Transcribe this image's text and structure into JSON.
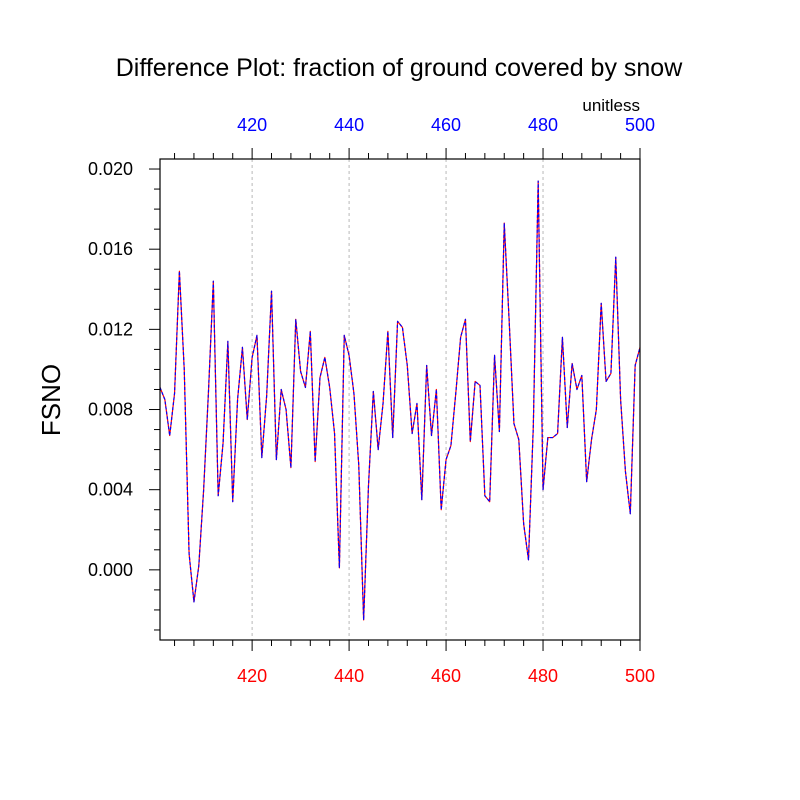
{
  "chart_data": {
    "type": "line",
    "title": "Difference Plot: fraction of ground covered by snow",
    "units_label": "unitless",
    "ylabel": "FSNO",
    "xlabel": "",
    "xlim": [
      401,
      500
    ],
    "ylim": [
      -0.0035,
      0.0205
    ],
    "x_ticks": [
      420,
      440,
      460,
      480,
      500
    ],
    "x_tick_labels": [
      "420",
      "440",
      "460",
      "480",
      "500"
    ],
    "top_x_tick_labels": [
      "420",
      "440",
      "460",
      "480",
      "500"
    ],
    "y_ticks": [
      0.0,
      0.004,
      0.008,
      0.012,
      0.016,
      0.02
    ],
    "y_tick_labels": [
      "0.000",
      "0.004",
      "0.008",
      "0.012",
      "0.016",
      "0.020"
    ],
    "grid": "vertical dotted lines at major x ticks",
    "colors": {
      "top_axis_labels": "#0000ff",
      "bottom_axis_labels": "#ff0000",
      "line_primary": "#ff0000",
      "line_overlay": "#0000ff",
      "grid": "#b8b8b8"
    },
    "series": [
      {
        "x": [
          401,
          402,
          403,
          404,
          405,
          406,
          407,
          408,
          409,
          410,
          411,
          412,
          413,
          414,
          415,
          416,
          417,
          418,
          419,
          420,
          421,
          422,
          423,
          424,
          425,
          426,
          427,
          428,
          429,
          430,
          431,
          432,
          433,
          434,
          435,
          436,
          437,
          438,
          439,
          440,
          441,
          442,
          443,
          444,
          445,
          446,
          447,
          448,
          449,
          450,
          451,
          452,
          453,
          454,
          455,
          456,
          457,
          458,
          459,
          460,
          461,
          462,
          463,
          464,
          465,
          466,
          467,
          468,
          469,
          470,
          471,
          472,
          473,
          474,
          475,
          476,
          477,
          478,
          479,
          480,
          481,
          482,
          483,
          484,
          485,
          486,
          487,
          488,
          489,
          490,
          491,
          492,
          493,
          494,
          495,
          496,
          497,
          498,
          499,
          500
        ],
        "values": [
          0.0091,
          0.0085,
          0.0067,
          0.0088,
          0.0149,
          0.01,
          0.0008,
          -0.0016,
          0.0002,
          0.004,
          0.0089,
          0.0144,
          0.0037,
          0.0063,
          0.0114,
          0.0034,
          0.0085,
          0.0111,
          0.0075,
          0.0106,
          0.0117,
          0.0056,
          0.0087,
          0.0139,
          0.0055,
          0.009,
          0.008,
          0.0051,
          0.0125,
          0.0099,
          0.0091,
          0.0119,
          0.0054,
          0.0096,
          0.0106,
          0.0091,
          0.0068,
          0.0001,
          0.0117,
          0.0107,
          0.0088,
          0.0052,
          -0.0025,
          0.0042,
          0.0089,
          0.006,
          0.0083,
          0.0119,
          0.0066,
          0.0124,
          0.0121,
          0.0102,
          0.0068,
          0.0083,
          0.0035,
          0.0102,
          0.0067,
          0.009,
          0.003,
          0.0055,
          0.0062,
          0.0088,
          0.0116,
          0.0125,
          0.0064,
          0.0094,
          0.0092,
          0.0037,
          0.0034,
          0.0107,
          0.0069,
          0.0173,
          0.0125,
          0.0073,
          0.0065,
          0.0023,
          0.0005,
          0.0072,
          0.0194,
          0.004,
          0.0066,
          0.0066,
          0.0068,
          0.0116,
          0.0071,
          0.0103,
          0.009,
          0.0097,
          0.0044,
          0.0065,
          0.008,
          0.0133,
          0.0094,
          0.0098,
          0.0156,
          0.0085,
          0.0049,
          0.0028,
          0.0102,
          0.0111
        ]
      }
    ]
  }
}
